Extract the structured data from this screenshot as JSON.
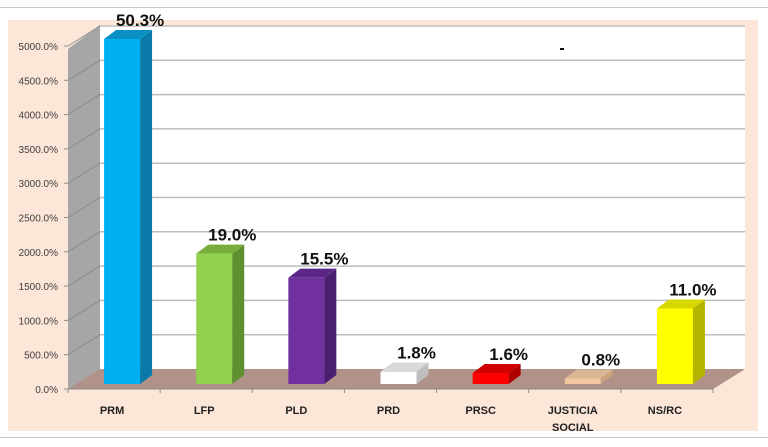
{
  "chart_data": {
    "type": "bar",
    "title": "",
    "xlabel": "",
    "ylabel": "",
    "categories": [
      "PRM",
      "LFP",
      "PLD",
      "PRD",
      "PRSC",
      "JUSTICIA SOCIAL",
      "NS/RC"
    ],
    "category_lines": [
      [
        "PRM"
      ],
      [
        "LFP"
      ],
      [
        "PLD"
      ],
      [
        "PRD"
      ],
      [
        "PRSC"
      ],
      [
        "JUSTICIA",
        "SOCIAL"
      ],
      [
        "NS/RC"
      ]
    ],
    "values": [
      50.3,
      19.0,
      15.5,
      1.8,
      1.6,
      0.8,
      11.0
    ],
    "value_labels": [
      "50.3%",
      "19.0%",
      "15.5%",
      "1.8%",
      "1.6%",
      "0.8%",
      "11.0%"
    ],
    "bar_heights_axis_units": [
      5030,
      1900,
      1550,
      180,
      160,
      80,
      1100
    ],
    "colors": [
      "#00b0f0",
      "#92d050",
      "#7030a0",
      "#ffffff",
      "#ff0000",
      "#f4c7a1",
      "#ffff00"
    ],
    "side_colors": [
      "#0a7aa8",
      "#5f8f2e",
      "#4b1f70",
      "#bfbfbf",
      "#b00000",
      "#c9a27e",
      "#b5b500"
    ],
    "top_colors": [
      "#0a8fc4",
      "#78ad3c",
      "#5c2688",
      "#d9d9d9",
      "#d00000",
      "#dbb894",
      "#d8d800"
    ],
    "y_ticks": [
      "0.0%",
      "500.0%",
      "1000.0%",
      "1500.0%",
      "2000.0%",
      "2500.0%",
      "3000.0%",
      "3500.0%",
      "4000.0%",
      "4500.0%",
      "5000.0%"
    ],
    "ylim": [
      0,
      5000
    ],
    "grid": true,
    "legend": "none",
    "style": "3d-column"
  }
}
